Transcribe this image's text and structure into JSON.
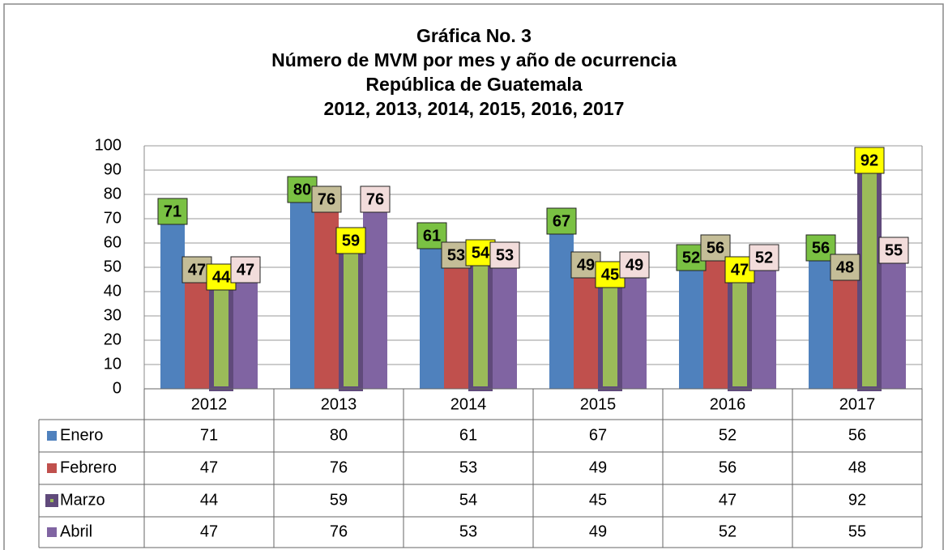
{
  "chart_data": {
    "type": "bar",
    "title": [
      "Gráfica No. 3",
      "Número de MVM por mes y año de ocurrencia",
      "República de Guatemala",
      "2012, 2013, 2014, 2015, 2016, 2017"
    ],
    "categories": [
      "2012",
      "2013",
      "2014",
      "2015",
      "2016",
      "2017"
    ],
    "series": [
      {
        "name": "Enero",
        "color": "#4f81bd",
        "label_color": "#7ac143",
        "values": [
          71,
          80,
          61,
          67,
          52,
          56
        ]
      },
      {
        "name": "Febrero",
        "color": "#c0504d",
        "label_color": "#c4bd97",
        "values": [
          47,
          76,
          53,
          49,
          56,
          48
        ]
      },
      {
        "name": "Marzo",
        "color": "#9bbb59",
        "border_color": "#604a7b",
        "label_color": "#ffff00",
        "values": [
          44,
          59,
          54,
          45,
          47,
          92
        ]
      },
      {
        "name": "Abril",
        "color": "#8064a2",
        "label_color": "#f2dcdb",
        "values": [
          47,
          76,
          53,
          49,
          52,
          55
        ]
      }
    ],
    "ylim": [
      0,
      100
    ],
    "yticks": [
      0,
      10,
      20,
      30,
      40,
      50,
      60,
      70,
      80,
      90,
      100
    ],
    "grid": true,
    "data_table": true
  }
}
